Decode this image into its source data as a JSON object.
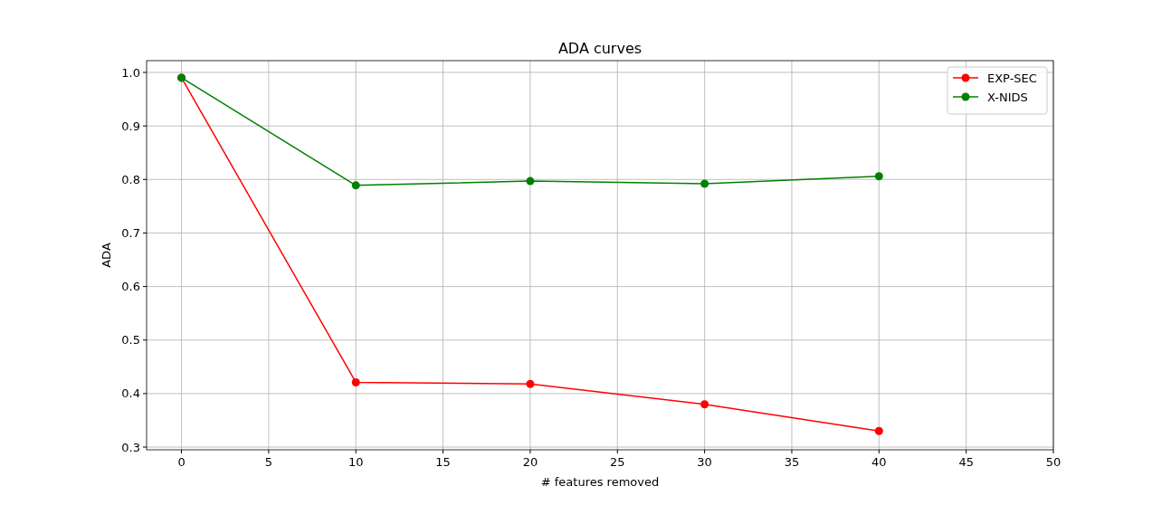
{
  "chart_data": {
    "type": "line",
    "title": "ADA curves",
    "xlabel": "# features removed",
    "ylabel": "ADA",
    "x": [
      0,
      10,
      20,
      30,
      40
    ],
    "series": [
      {
        "name": "EXP-SEC",
        "color": "#ff0000",
        "values": [
          0.99,
          0.421,
          0.418,
          0.38,
          0.33
        ]
      },
      {
        "name": "X-NIDS",
        "color": "#008000",
        "values": [
          0.99,
          0.789,
          0.797,
          0.792,
          0.806
        ]
      }
    ],
    "xlim": [
      -2,
      50
    ],
    "xticks": [
      0,
      5,
      10,
      15,
      20,
      25,
      30,
      35,
      40,
      45,
      50
    ],
    "ylim": [
      0.295,
      1.022
    ],
    "yticks": [
      {
        "value": 0.3,
        "label": "0.3"
      },
      {
        "value": 0.4,
        "label": "0.4"
      },
      {
        "value": 0.5,
        "label": "0.5"
      },
      {
        "value": 0.6,
        "label": "0.6"
      },
      {
        "value": 0.7,
        "label": "0.7"
      },
      {
        "value": 0.8,
        "label": "0.8"
      },
      {
        "value": 0.9,
        "label": "0.9"
      },
      {
        "value": 1.0,
        "label": "1.0"
      }
    ],
    "grid": true,
    "legend": "top right",
    "marker": "circle"
  }
}
